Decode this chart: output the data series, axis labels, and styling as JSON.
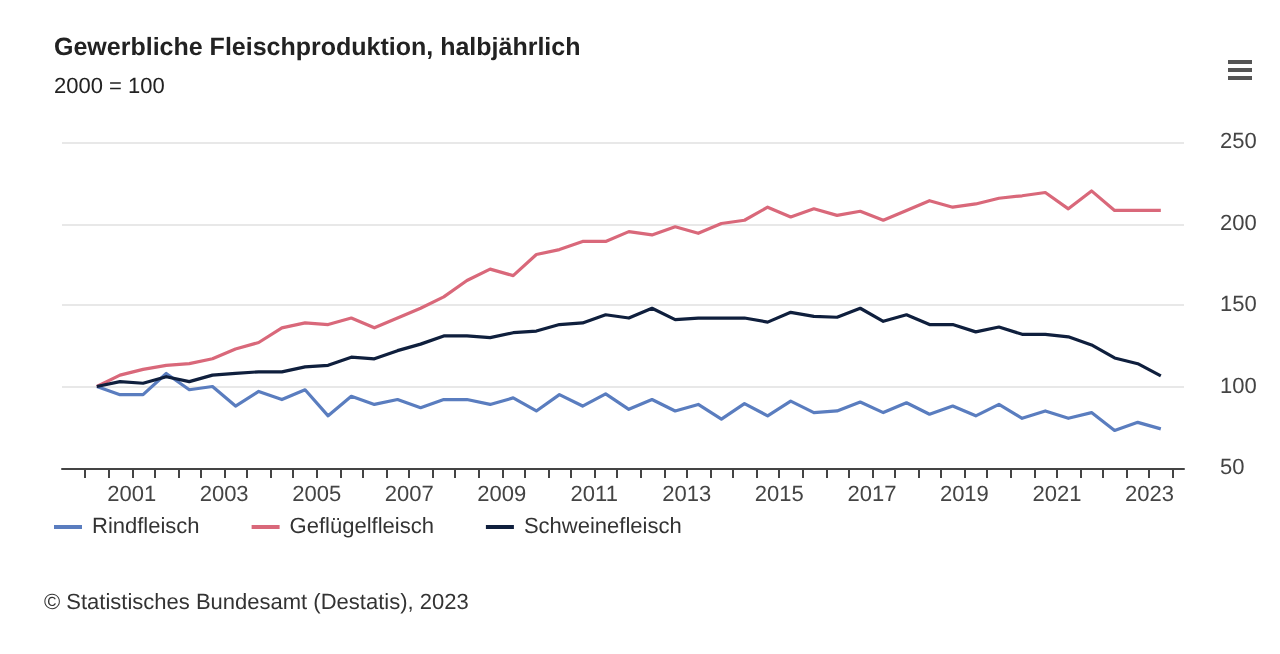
{
  "chart_data": {
    "type": "line",
    "title": "Gewerbliche Fleischproduktion, halbjährlich",
    "subtitle": "2000 = 100",
    "x": [
      "2000-04",
      "2000-10",
      "2001-04",
      "2001-10",
      "2002-04",
      "2002-10",
      "2003-04",
      "2003-10",
      "2004-04",
      "2004-10",
      "2005-04",
      "2005-10",
      "2006-04",
      "2006-10",
      "2007-04",
      "2007-10",
      "2008-04",
      "2008-10",
      "2009-04",
      "2009-10",
      "2010-04",
      "2010-10",
      "2011-04",
      "2011-10",
      "2012-04",
      "2012-10",
      "2013-04",
      "2013-10",
      "2014-04",
      "2014-10",
      "2015-04",
      "2015-10",
      "2016-04",
      "2016-10",
      "2017-04",
      "2017-10",
      "2018-04",
      "2018-10",
      "2019-04",
      "2019-10",
      "2020-04",
      "2020-10",
      "2021-04",
      "2021-10",
      "2022-04",
      "2022-10",
      "2023-04"
    ],
    "series": [
      {
        "name": "Rindfleisch",
        "color": "#5a7dbf",
        "values": [
          100,
          95,
          95,
          108,
          98,
          100,
          88,
          97,
          92,
          98,
          82,
          94,
          89,
          92,
          87,
          92,
          92,
          89,
          93,
          85,
          95,
          88,
          95.5,
          86,
          92,
          85,
          89,
          80,
          89.5,
          82,
          91,
          84,
          85,
          90.5,
          84,
          90,
          83,
          88,
          82,
          89,
          80.5,
          85,
          80.5,
          84,
          73,
          78,
          74
        ]
      },
      {
        "name": "Geflügelfleisch",
        "color": "#d9687a",
        "values": [
          100,
          107,
          110.5,
          113,
          114,
          117,
          123,
          127,
          136,
          139,
          138,
          142,
          136,
          142,
          148,
          155,
          165,
          172,
          168,
          181,
          184,
          189,
          189,
          195,
          193,
          198,
          194,
          200,
          202,
          210,
          204,
          209,
          205,
          207.5,
          202,
          208,
          214,
          210,
          212,
          215.5,
          217,
          219,
          209,
          220,
          208,
          208,
          208
        ]
      },
      {
        "name": "Schweinefleisch",
        "color": "#0f1f3d",
        "values": [
          100,
          103,
          102,
          106,
          103,
          107,
          108,
          109,
          109,
          112,
          113,
          118,
          117,
          122,
          126,
          131,
          131,
          130,
          133,
          134,
          138,
          139,
          144,
          142,
          148,
          141,
          142,
          142,
          142,
          139.5,
          145.5,
          143,
          142.5,
          148,
          140,
          144,
          138,
          138,
          133.5,
          136.5,
          132,
          132,
          130.5,
          125.5,
          117.5,
          114,
          106.5
        ]
      }
    ],
    "xlim": [
      "1999-07",
      "2023-10"
    ],
    "xticks": [
      {
        "value": "2000-01",
        "label": null
      },
      {
        "value": "2000-07",
        "label": null
      },
      {
        "value": "2001-01",
        "label": "2001"
      },
      {
        "value": "2001-07",
        "label": null
      },
      {
        "value": "2002-01",
        "label": null
      },
      {
        "value": "2002-07",
        "label": null
      },
      {
        "value": "2003-01",
        "label": "2003"
      },
      {
        "value": "2003-07",
        "label": null
      },
      {
        "value": "2004-01",
        "label": null
      },
      {
        "value": "2004-07",
        "label": null
      },
      {
        "value": "2005-01",
        "label": "2005"
      },
      {
        "value": "2005-07",
        "label": null
      },
      {
        "value": "2006-01",
        "label": null
      },
      {
        "value": "2006-07",
        "label": null
      },
      {
        "value": "2007-01",
        "label": "2007"
      },
      {
        "value": "2007-07",
        "label": null
      },
      {
        "value": "2008-01",
        "label": null
      },
      {
        "value": "2008-07",
        "label": null
      },
      {
        "value": "2009-01",
        "label": "2009"
      },
      {
        "value": "2009-07",
        "label": null
      },
      {
        "value": "2010-01",
        "label": null
      },
      {
        "value": "2010-07",
        "label": null
      },
      {
        "value": "2011-01",
        "label": "2011"
      },
      {
        "value": "2011-07",
        "label": null
      },
      {
        "value": "2012-01",
        "label": null
      },
      {
        "value": "2012-07",
        "label": null
      },
      {
        "value": "2013-01",
        "label": "2013"
      },
      {
        "value": "2013-07",
        "label": null
      },
      {
        "value": "2014-01",
        "label": null
      },
      {
        "value": "2014-07",
        "label": null
      },
      {
        "value": "2015-01",
        "label": "2015"
      },
      {
        "value": "2015-07",
        "label": null
      },
      {
        "value": "2016-01",
        "label": null
      },
      {
        "value": "2016-07",
        "label": null
      },
      {
        "value": "2017-01",
        "label": "2017"
      },
      {
        "value": "2017-07",
        "label": null
      },
      {
        "value": "2018-01",
        "label": null
      },
      {
        "value": "2018-07",
        "label": null
      },
      {
        "value": "2019-01",
        "label": "2019"
      },
      {
        "value": "2019-07",
        "label": null
      },
      {
        "value": "2020-01",
        "label": null
      },
      {
        "value": "2020-07",
        "label": null
      },
      {
        "value": "2021-01",
        "label": "2021"
      },
      {
        "value": "2021-07",
        "label": null
      },
      {
        "value": "2022-01",
        "label": null
      },
      {
        "value": "2022-07",
        "label": null
      },
      {
        "value": "2023-01",
        "label": "2023"
      },
      {
        "value": "2023-07",
        "label": null
      }
    ],
    "ylim": [
      50,
      250
    ],
    "yticks": [
      50,
      100,
      150,
      200,
      250
    ],
    "grid": "y",
    "legend": "bottom left",
    "marker": "none",
    "line_style": "solid",
    "annotations": [
      "© Statistisches Bundesamt (Destatis), 2023"
    ]
  }
}
